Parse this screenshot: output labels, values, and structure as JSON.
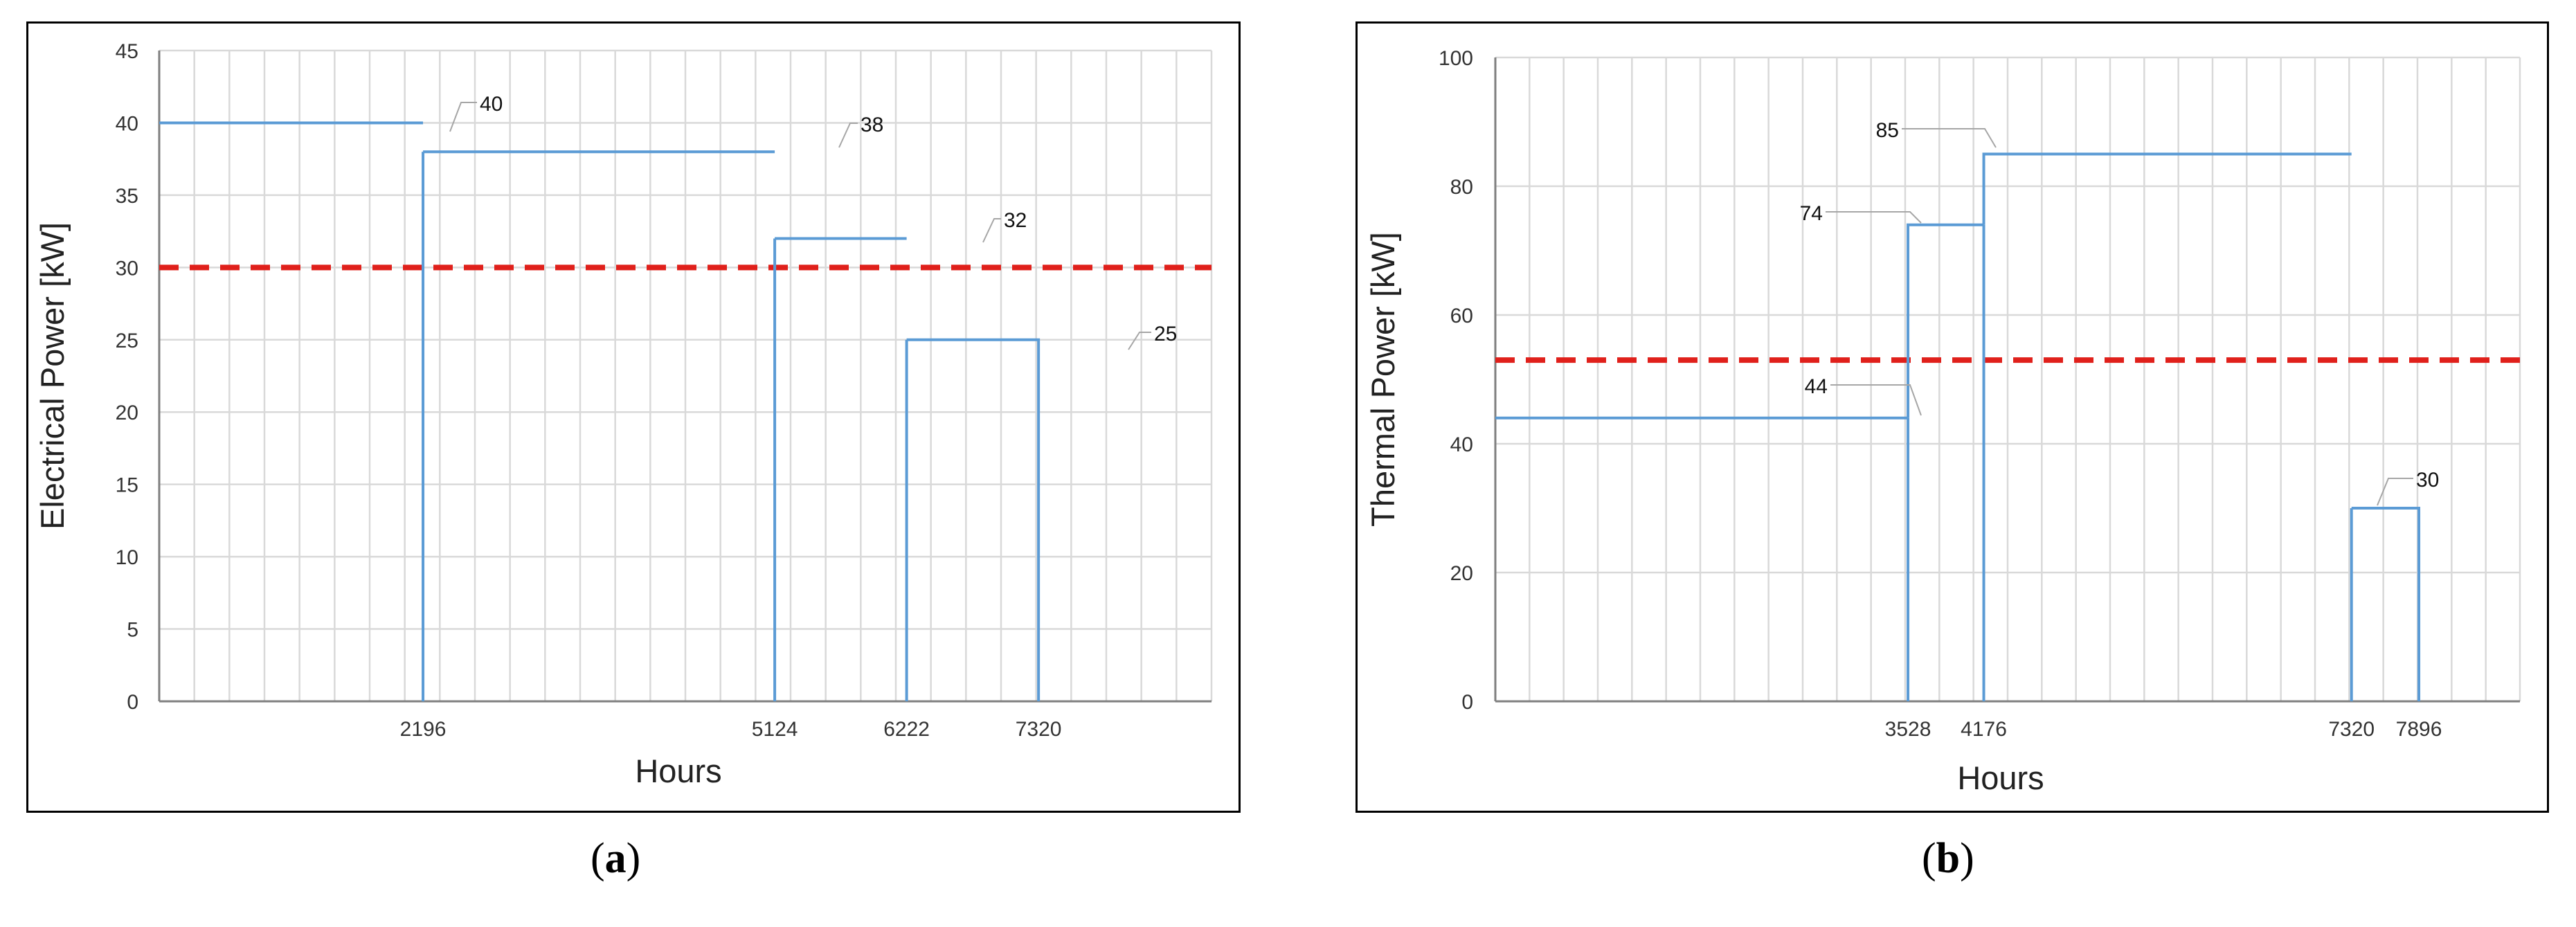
{
  "panels": [
    {
      "caption_open": "(",
      "caption_letter": "a",
      "caption_close": ")",
      "chart_data": {
        "type": "line",
        "step": true,
        "xlabel": "Hours",
        "ylabel": "Electrical Power [kW]",
        "xlim": [
          0,
          8760
        ],
        "ylim": [
          0,
          45
        ],
        "yticks": [
          0,
          5,
          10,
          15,
          20,
          25,
          30,
          35,
          40,
          45
        ],
        "xtick_labels": [
          2196,
          5124,
          6222,
          7320
        ],
        "grid": true,
        "series": [
          {
            "color": "#5b9bd5",
            "steps": [
              {
                "x0": 0,
                "x1": 2196,
                "y": 40
              },
              {
                "x0": 2196,
                "x1": 5124,
                "y": 38
              },
              {
                "x0": 5124,
                "x1": 6222,
                "y": 32
              },
              {
                "x0": 6222,
                "x1": 7320,
                "y": 25
              }
            ],
            "data_labels": [
              "40",
              "38",
              "32",
              "25"
            ]
          }
        ],
        "reference_line": {
          "y": 30,
          "color": "#e0201b",
          "style": "dashed"
        }
      }
    },
    {
      "caption_open": "(",
      "caption_letter": "b",
      "caption_close": ")",
      "chart_data": {
        "type": "line",
        "step": true,
        "xlabel": "Hours",
        "ylabel": "Thermal Power [kW]",
        "xlim": [
          0,
          8760
        ],
        "ylim": [
          0,
          100
        ],
        "yticks": [
          0,
          20,
          40,
          60,
          80,
          100
        ],
        "xtick_labels": [
          3528,
          4176,
          7320,
          7896
        ],
        "grid": true,
        "series": [
          {
            "color": "#5b9bd5",
            "steps": [
              {
                "x0": 0,
                "x1": 3528,
                "y": 44
              },
              {
                "x0": 3528,
                "x1": 4176,
                "y": 74
              },
              {
                "x0": 4176,
                "x1": 7320,
                "y": 85
              },
              {
                "x0": 7320,
                "x1": 7896,
                "y": 30
              }
            ],
            "data_labels": [
              "44",
              "74",
              "85",
              "30"
            ]
          }
        ],
        "reference_line": {
          "y": 53,
          "color": "#e0201b",
          "style": "dashed"
        }
      }
    }
  ]
}
